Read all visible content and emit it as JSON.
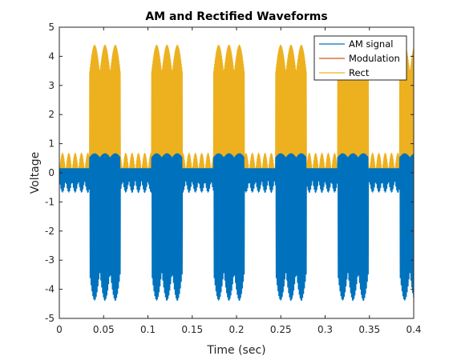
{
  "chart_data": {
    "type": "line",
    "title": "AM and Rectified Waveforms",
    "xlabel": "Time (sec)",
    "ylabel": "Voltage",
    "xlim": [
      0,
      0.4
    ],
    "ylim": [
      -5,
      5
    ],
    "xticks": [
      0,
      0.05,
      0.1,
      0.15,
      0.2,
      0.25,
      0.3,
      0.35,
      0.4
    ],
    "yticks": [
      -5,
      -4,
      -3,
      -2,
      -1,
      0,
      1,
      2,
      3,
      4,
      5
    ],
    "grid": false,
    "box": true,
    "legend_position": "top-right",
    "series": [
      {
        "name": "AM signal",
        "color": "#0072BD",
        "description_values": {
          "carrier_frequency_hz": 1000,
          "pulse_period_sec": 0.07,
          "pulse_width_sec": 0.035,
          "pulse_start_sec": 0.034,
          "pulse_peak_amplitude": 4.6,
          "baseline_negative_amplitude": 0.7,
          "baseline_positive_amplitude": 0.15
        }
      },
      {
        "name": "Modulation",
        "color": "#D95319"
      },
      {
        "name": "Rect",
        "color": "#EDB120",
        "description_values": {
          "pulse_peak_amplitude": 4.6,
          "baseline_bump_amplitude": 0.7
        }
      }
    ]
  }
}
